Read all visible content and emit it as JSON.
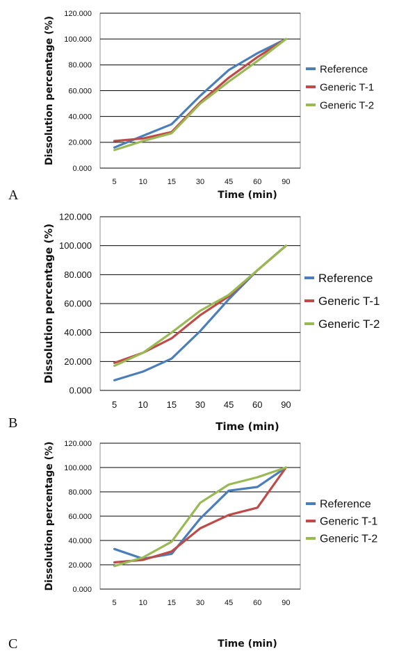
{
  "chart_data": [
    {
      "type": "line",
      "panel_label": "A",
      "categories": [
        "5",
        "10",
        "15",
        "30",
        "45",
        "60",
        "90"
      ],
      "ylabel": "Dissolution percentage (%)",
      "xlabel": "Time (min)",
      "ylim": [
        0,
        120
      ],
      "yticks": [
        "0.000",
        "20.000",
        "40.000",
        "60.000",
        "80.000",
        "100.000",
        "120.000"
      ],
      "grid": "horizontal",
      "legend_position": "right",
      "series": [
        {
          "name": "Reference",
          "color": "#4a7ebb",
          "values": [
            16,
            25,
            34,
            56,
            76,
            89,
            100
          ]
        },
        {
          "name": "Generic T-1",
          "color": "#be4b48",
          "values": [
            21,
            23,
            28,
            51,
            70,
            86,
            100
          ]
        },
        {
          "name": "Generic T-2",
          "color": "#98b954",
          "values": [
            14,
            21,
            27,
            50,
            67,
            83,
            100
          ]
        }
      ]
    },
    {
      "type": "line",
      "panel_label": "B",
      "categories": [
        "5",
        "10",
        "15",
        "30",
        "45",
        "60",
        "90"
      ],
      "ylabel": "Dissolution percentage (%)",
      "xlabel": "Time (min)",
      "ylim": [
        0,
        120
      ],
      "yticks": [
        "0.000",
        "20.000",
        "40.000",
        "60.000",
        "80.000",
        "100.000",
        "120.000"
      ],
      "grid": "horizontal",
      "legend_position": "right",
      "series": [
        {
          "name": "Reference",
          "color": "#4a7ebb",
          "values": [
            7,
            13,
            22,
            41,
            63,
            83,
            100
          ]
        },
        {
          "name": "Generic T-1",
          "color": "#be4b48",
          "values": [
            19,
            26,
            36,
            52,
            65,
            83,
            100
          ]
        },
        {
          "name": "Generic T-2",
          "color": "#98b954",
          "values": [
            17,
            26,
            40,
            55,
            66,
            83,
            100
          ]
        }
      ]
    },
    {
      "type": "line",
      "panel_label": "C",
      "categories": [
        "5",
        "10",
        "15",
        "30",
        "45",
        "60",
        "90"
      ],
      "ylabel": "Dissolution percentage (%)",
      "xlabel": "Time (min)",
      "ylim": [
        0,
        120
      ],
      "yticks": [
        "0.000",
        "20.000",
        "40.000",
        "60.000",
        "80.000",
        "100.000",
        "120.000"
      ],
      "grid": "horizontal",
      "legend_position": "right",
      "series": [
        {
          "name": "Reference",
          "color": "#4a7ebb",
          "values": [
            33,
            25,
            29,
            58,
            81,
            84,
            100
          ]
        },
        {
          "name": "Generic T-1",
          "color": "#be4b48",
          "values": [
            22,
            24,
            31,
            50,
            61,
            67,
            100
          ]
        },
        {
          "name": "Generic T-2",
          "color": "#98b954",
          "values": [
            19,
            26,
            39,
            71,
            86,
            92,
            100
          ]
        }
      ]
    }
  ]
}
